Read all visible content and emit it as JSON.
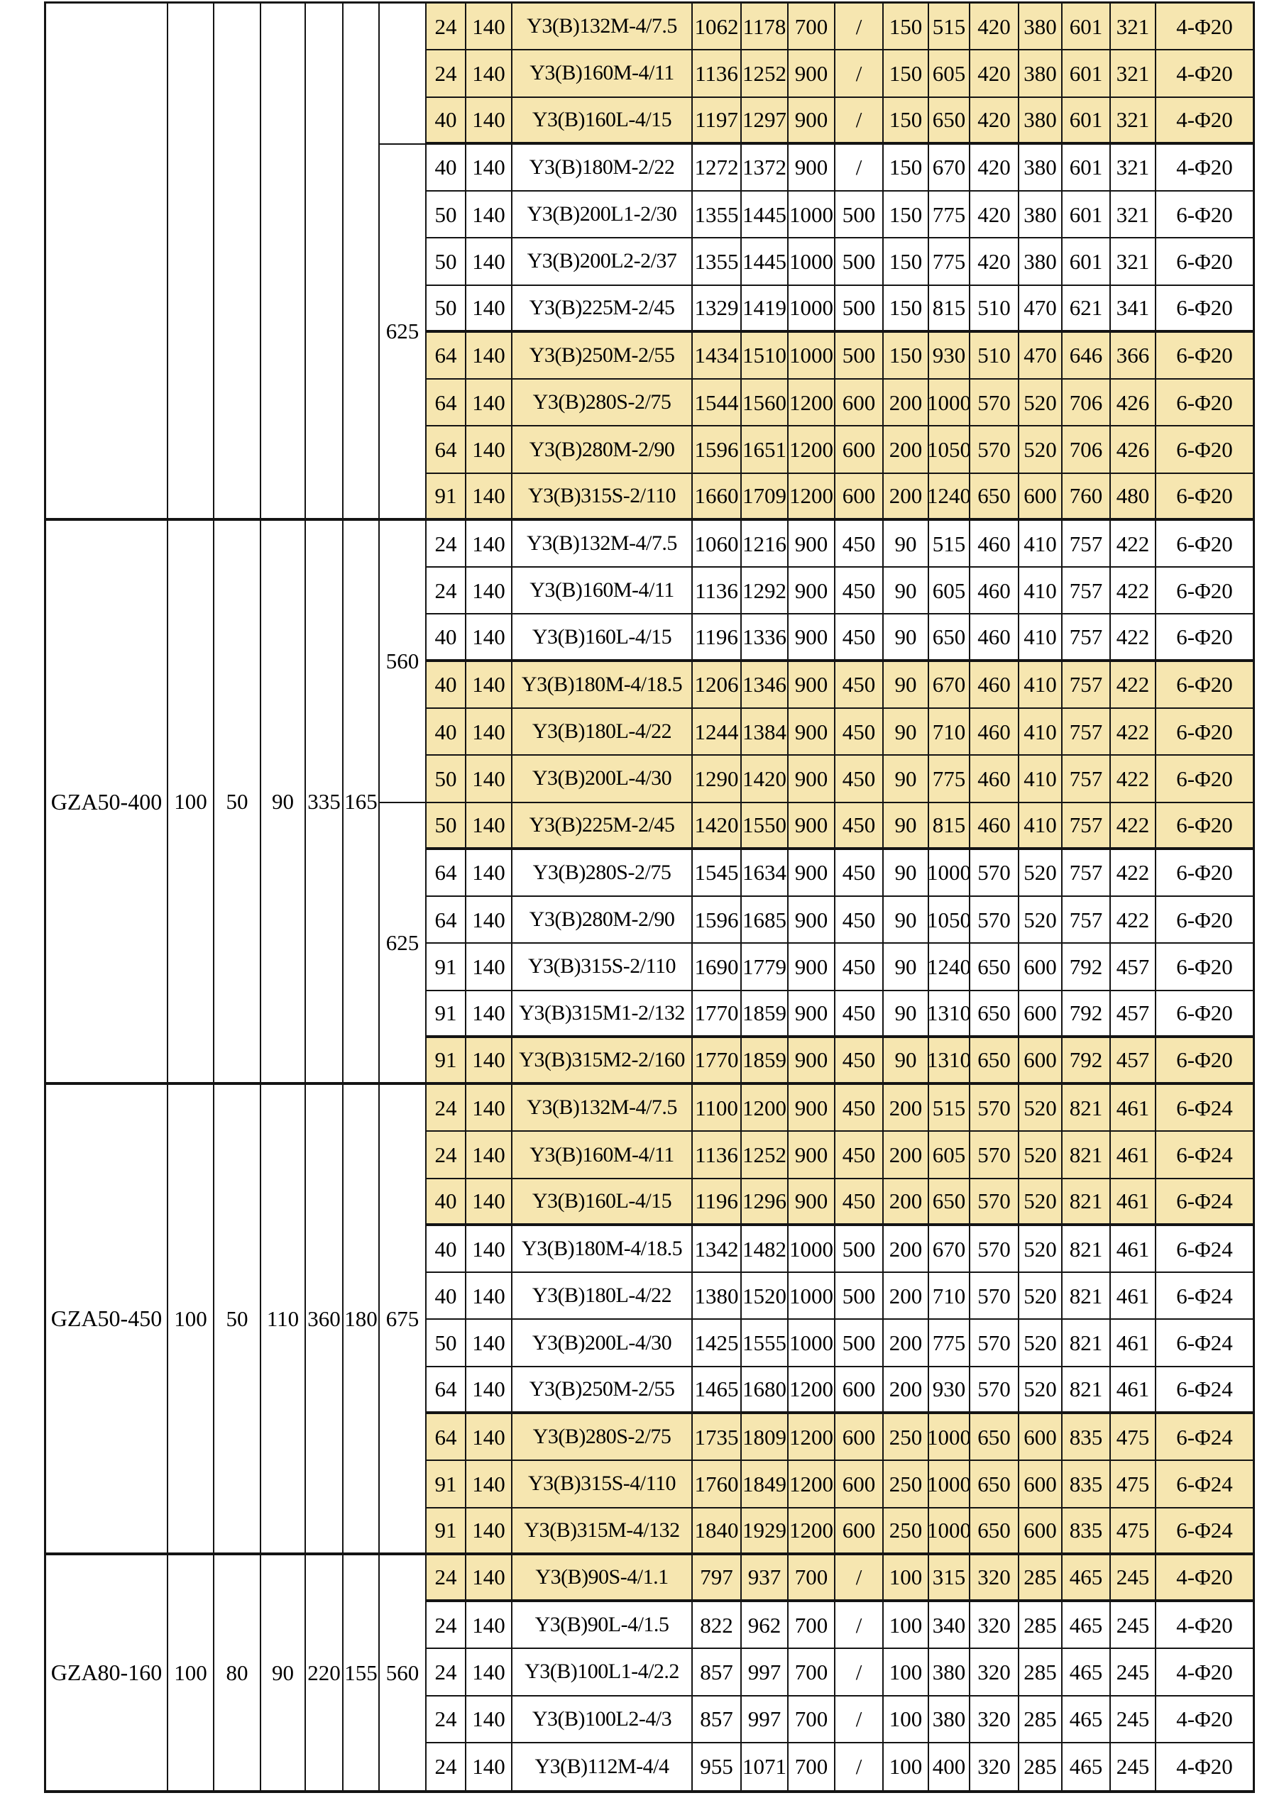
{
  "table": {
    "highlight_color": "#F6E6B0",
    "grid_line_color": "#141414",
    "sections": [
      {
        "model": "",
        "dims": [
          "",
          "",
          "",
          "",
          ""
        ],
        "groups": [
          {
            "label": "",
            "rows": 3
          },
          {
            "label": "625",
            "rows": 8
          }
        ],
        "rows": [
          {
            "highlight": true,
            "cells": [
              "24",
              "140",
              "Y3(B)132M-4/7.5",
              "1062",
              "1178",
              "700",
              "/",
              "150",
              "515",
              "420",
              "380",
              "601",
              "321",
              "4-Φ20"
            ]
          },
          {
            "highlight": true,
            "cells": [
              "24",
              "140",
              "Y3(B)160M-4/11",
              "1136",
              "1252",
              "900",
              "/",
              "150",
              "605",
              "420",
              "380",
              "601",
              "321",
              "4-Φ20"
            ]
          },
          {
            "highlight": true,
            "cells": [
              "40",
              "140",
              "Y3(B)160L-4/15",
              "1197",
              "1297",
              "900",
              "/",
              "150",
              "650",
              "420",
              "380",
              "601",
              "321",
              "4-Φ20"
            ]
          },
          {
            "highlight": false,
            "cells": [
              "40",
              "140",
              "Y3(B)180M-2/22",
              "1272",
              "1372",
              "900",
              "/",
              "150",
              "670",
              "420",
              "380",
              "601",
              "321",
              "4-Φ20"
            ]
          },
          {
            "highlight": false,
            "cells": [
              "50",
              "140",
              "Y3(B)200L1-2/30",
              "1355",
              "1445",
              "1000",
              "500",
              "150",
              "775",
              "420",
              "380",
              "601",
              "321",
              "6-Φ20"
            ]
          },
          {
            "highlight": false,
            "cells": [
              "50",
              "140",
              "Y3(B)200L2-2/37",
              "1355",
              "1445",
              "1000",
              "500",
              "150",
              "775",
              "420",
              "380",
              "601",
              "321",
              "6-Φ20"
            ]
          },
          {
            "highlight": false,
            "cells": [
              "50",
              "140",
              "Y3(B)225M-2/45",
              "1329",
              "1419",
              "1000",
              "500",
              "150",
              "815",
              "510",
              "470",
              "621",
              "341",
              "6-Φ20"
            ]
          },
          {
            "highlight": true,
            "cells": [
              "64",
              "140",
              "Y3(B)250M-2/55",
              "1434",
              "1510",
              "1000",
              "500",
              "150",
              "930",
              "510",
              "470",
              "646",
              "366",
              "6-Φ20"
            ]
          },
          {
            "highlight": true,
            "cells": [
              "64",
              "140",
              "Y3(B)280S-2/75",
              "1544",
              "1560",
              "1200",
              "600",
              "200",
              "1000",
              "570",
              "520",
              "706",
              "426",
              "6-Φ20"
            ]
          },
          {
            "highlight": true,
            "cells": [
              "64",
              "140",
              "Y3(B)280M-2/90",
              "1596",
              "1651",
              "1200",
              "600",
              "200",
              "1050",
              "570",
              "520",
              "706",
              "426",
              "6-Φ20"
            ]
          },
          {
            "highlight": true,
            "cells": [
              "91",
              "140",
              "Y3(B)315S-2/110",
              "1660",
              "1709",
              "1200",
              "600",
              "200",
              "1240",
              "650",
              "600",
              "760",
              "480",
              "6-Φ20"
            ]
          }
        ]
      },
      {
        "model": "GZA50-400",
        "dims": [
          "100",
          "50",
          "90",
          "335",
          "165"
        ],
        "groups": [
          {
            "label": "560",
            "rows": 6
          },
          {
            "label": "625",
            "rows": 6
          }
        ],
        "rows": [
          {
            "highlight": false,
            "cells": [
              "24",
              "140",
              "Y3(B)132M-4/7.5",
              "1060",
              "1216",
              "900",
              "450",
              "90",
              "515",
              "460",
              "410",
              "757",
              "422",
              "6-Φ20"
            ]
          },
          {
            "highlight": false,
            "cells": [
              "24",
              "140",
              "Y3(B)160M-4/11",
              "1136",
              "1292",
              "900",
              "450",
              "90",
              "605",
              "460",
              "410",
              "757",
              "422",
              "6-Φ20"
            ]
          },
          {
            "highlight": false,
            "cells": [
              "40",
              "140",
              "Y3(B)160L-4/15",
              "1196",
              "1336",
              "900",
              "450",
              "90",
              "650",
              "460",
              "410",
              "757",
              "422",
              "6-Φ20"
            ]
          },
          {
            "highlight": true,
            "cells": [
              "40",
              "140",
              "Y3(B)180M-4/18.5",
              "1206",
              "1346",
              "900",
              "450",
              "90",
              "670",
              "460",
              "410",
              "757",
              "422",
              "6-Φ20"
            ]
          },
          {
            "highlight": true,
            "cells": [
              "40",
              "140",
              "Y3(B)180L-4/22",
              "1244",
              "1384",
              "900",
              "450",
              "90",
              "710",
              "460",
              "410",
              "757",
              "422",
              "6-Φ20"
            ]
          },
          {
            "highlight": true,
            "cells": [
              "50",
              "140",
              "Y3(B)200L-4/30",
              "1290",
              "1420",
              "900",
              "450",
              "90",
              "775",
              "460",
              "410",
              "757",
              "422",
              "6-Φ20"
            ]
          },
          {
            "highlight": true,
            "cells": [
              "50",
              "140",
              "Y3(B)225M-2/45",
              "1420",
              "1550",
              "900",
              "450",
              "90",
              "815",
              "460",
              "410",
              "757",
              "422",
              "6-Φ20"
            ]
          },
          {
            "highlight": false,
            "cells": [
              "64",
              "140",
              "Y3(B)280S-2/75",
              "1545",
              "1634",
              "900",
              "450",
              "90",
              "1000",
              "570",
              "520",
              "757",
              "422",
              "6-Φ20"
            ]
          },
          {
            "highlight": false,
            "cells": [
              "64",
              "140",
              "Y3(B)280M-2/90",
              "1596",
              "1685",
              "900",
              "450",
              "90",
              "1050",
              "570",
              "520",
              "757",
              "422",
              "6-Φ20"
            ]
          },
          {
            "highlight": false,
            "cells": [
              "91",
              "140",
              "Y3(B)315S-2/110",
              "1690",
              "1779",
              "900",
              "450",
              "90",
              "1240",
              "650",
              "600",
              "792",
              "457",
              "6-Φ20"
            ]
          },
          {
            "highlight": false,
            "cells": [
              "91",
              "140",
              "Y3(B)315M1-2/132",
              "1770",
              "1859",
              "900",
              "450",
              "90",
              "1310",
              "650",
              "600",
              "792",
              "457",
              "6-Φ20"
            ]
          },
          {
            "highlight": true,
            "cells": [
              "91",
              "140",
              "Y3(B)315M2-2/160",
              "1770",
              "1859",
              "900",
              "450",
              "90",
              "1310",
              "650",
              "600",
              "792",
              "457",
              "6-Φ20"
            ]
          }
        ]
      },
      {
        "model": "GZA50-450",
        "dims": [
          "100",
          "50",
          "110",
          "360",
          "180"
        ],
        "groups": [
          {
            "label": "675",
            "rows": 10
          }
        ],
        "rows": [
          {
            "highlight": true,
            "cells": [
              "24",
              "140",
              "Y3(B)132M-4/7.5",
              "1100",
              "1200",
              "900",
              "450",
              "200",
              "515",
              "570",
              "520",
              "821",
              "461",
              "6-Φ24"
            ]
          },
          {
            "highlight": true,
            "cells": [
              "24",
              "140",
              "Y3(B)160M-4/11",
              "1136",
              "1252",
              "900",
              "450",
              "200",
              "605",
              "570",
              "520",
              "821",
              "461",
              "6-Φ24"
            ]
          },
          {
            "highlight": true,
            "cells": [
              "40",
              "140",
              "Y3(B)160L-4/15",
              "1196",
              "1296",
              "900",
              "450",
              "200",
              "650",
              "570",
              "520",
              "821",
              "461",
              "6-Φ24"
            ]
          },
          {
            "highlight": false,
            "cells": [
              "40",
              "140",
              "Y3(B)180M-4/18.5",
              "1342",
              "1482",
              "1000",
              "500",
              "200",
              "670",
              "570",
              "520",
              "821",
              "461",
              "6-Φ24"
            ]
          },
          {
            "highlight": false,
            "cells": [
              "40",
              "140",
              "Y3(B)180L-4/22",
              "1380",
              "1520",
              "1000",
              "500",
              "200",
              "710",
              "570",
              "520",
              "821",
              "461",
              "6-Φ24"
            ]
          },
          {
            "highlight": false,
            "cells": [
              "50",
              "140",
              "Y3(B)200L-4/30",
              "1425",
              "1555",
              "1000",
              "500",
              "200",
              "775",
              "570",
              "520",
              "821",
              "461",
              "6-Φ24"
            ]
          },
          {
            "highlight": false,
            "cells": [
              "64",
              "140",
              "Y3(B)250M-2/55",
              "1465",
              "1680",
              "1200",
              "600",
              "200",
              "930",
              "570",
              "520",
              "821",
              "461",
              "6-Φ24"
            ]
          },
          {
            "highlight": true,
            "cells": [
              "64",
              "140",
              "Y3(B)280S-2/75",
              "1735",
              "1809",
              "1200",
              "600",
              "250",
              "1000",
              "650",
              "600",
              "835",
              "475",
              "6-Φ24"
            ]
          },
          {
            "highlight": true,
            "cells": [
              "91",
              "140",
              "Y3(B)315S-4/110",
              "1760",
              "1849",
              "1200",
              "600",
              "250",
              "1000",
              "650",
              "600",
              "835",
              "475",
              "6-Φ24"
            ]
          },
          {
            "highlight": true,
            "cells": [
              "91",
              "140",
              "Y3(B)315M-4/132",
              "1840",
              "1929",
              "1200",
              "600",
              "250",
              "1000",
              "650",
              "600",
              "835",
              "475",
              "6-Φ24"
            ]
          }
        ]
      },
      {
        "model": "GZA80-160",
        "dims": [
          "100",
          "80",
          "90",
          "220",
          "155"
        ],
        "groups": [
          {
            "label": "560",
            "rows": 5
          }
        ],
        "rows": [
          {
            "highlight": true,
            "cells": [
              "24",
              "140",
              "Y3(B)90S-4/1.1",
              "797",
              "937",
              "700",
              "/",
              "100",
              "315",
              "320",
              "285",
              "465",
              "245",
              "4-Φ20"
            ]
          },
          {
            "highlight": false,
            "cells": [
              "24",
              "140",
              "Y3(B)90L-4/1.5",
              "822",
              "962",
              "700",
              "/",
              "100",
              "340",
              "320",
              "285",
              "465",
              "245",
              "4-Φ20"
            ]
          },
          {
            "highlight": false,
            "cells": [
              "24",
              "140",
              "Y3(B)100L1-4/2.2",
              "857",
              "997",
              "700",
              "/",
              "100",
              "380",
              "320",
              "285",
              "465",
              "245",
              "4-Φ20"
            ]
          },
          {
            "highlight": false,
            "cells": [
              "24",
              "140",
              "Y3(B)100L2-4/3",
              "857",
              "997",
              "700",
              "/",
              "100",
              "380",
              "320",
              "285",
              "465",
              "245",
              "4-Φ20"
            ]
          },
          {
            "highlight": false,
            "cells": [
              "24",
              "140",
              "Y3(B)112M-4/4",
              "955",
              "1071",
              "700",
              "/",
              "100",
              "400",
              "320",
              "285",
              "465",
              "245",
              "4-Φ20"
            ]
          }
        ]
      }
    ]
  }
}
